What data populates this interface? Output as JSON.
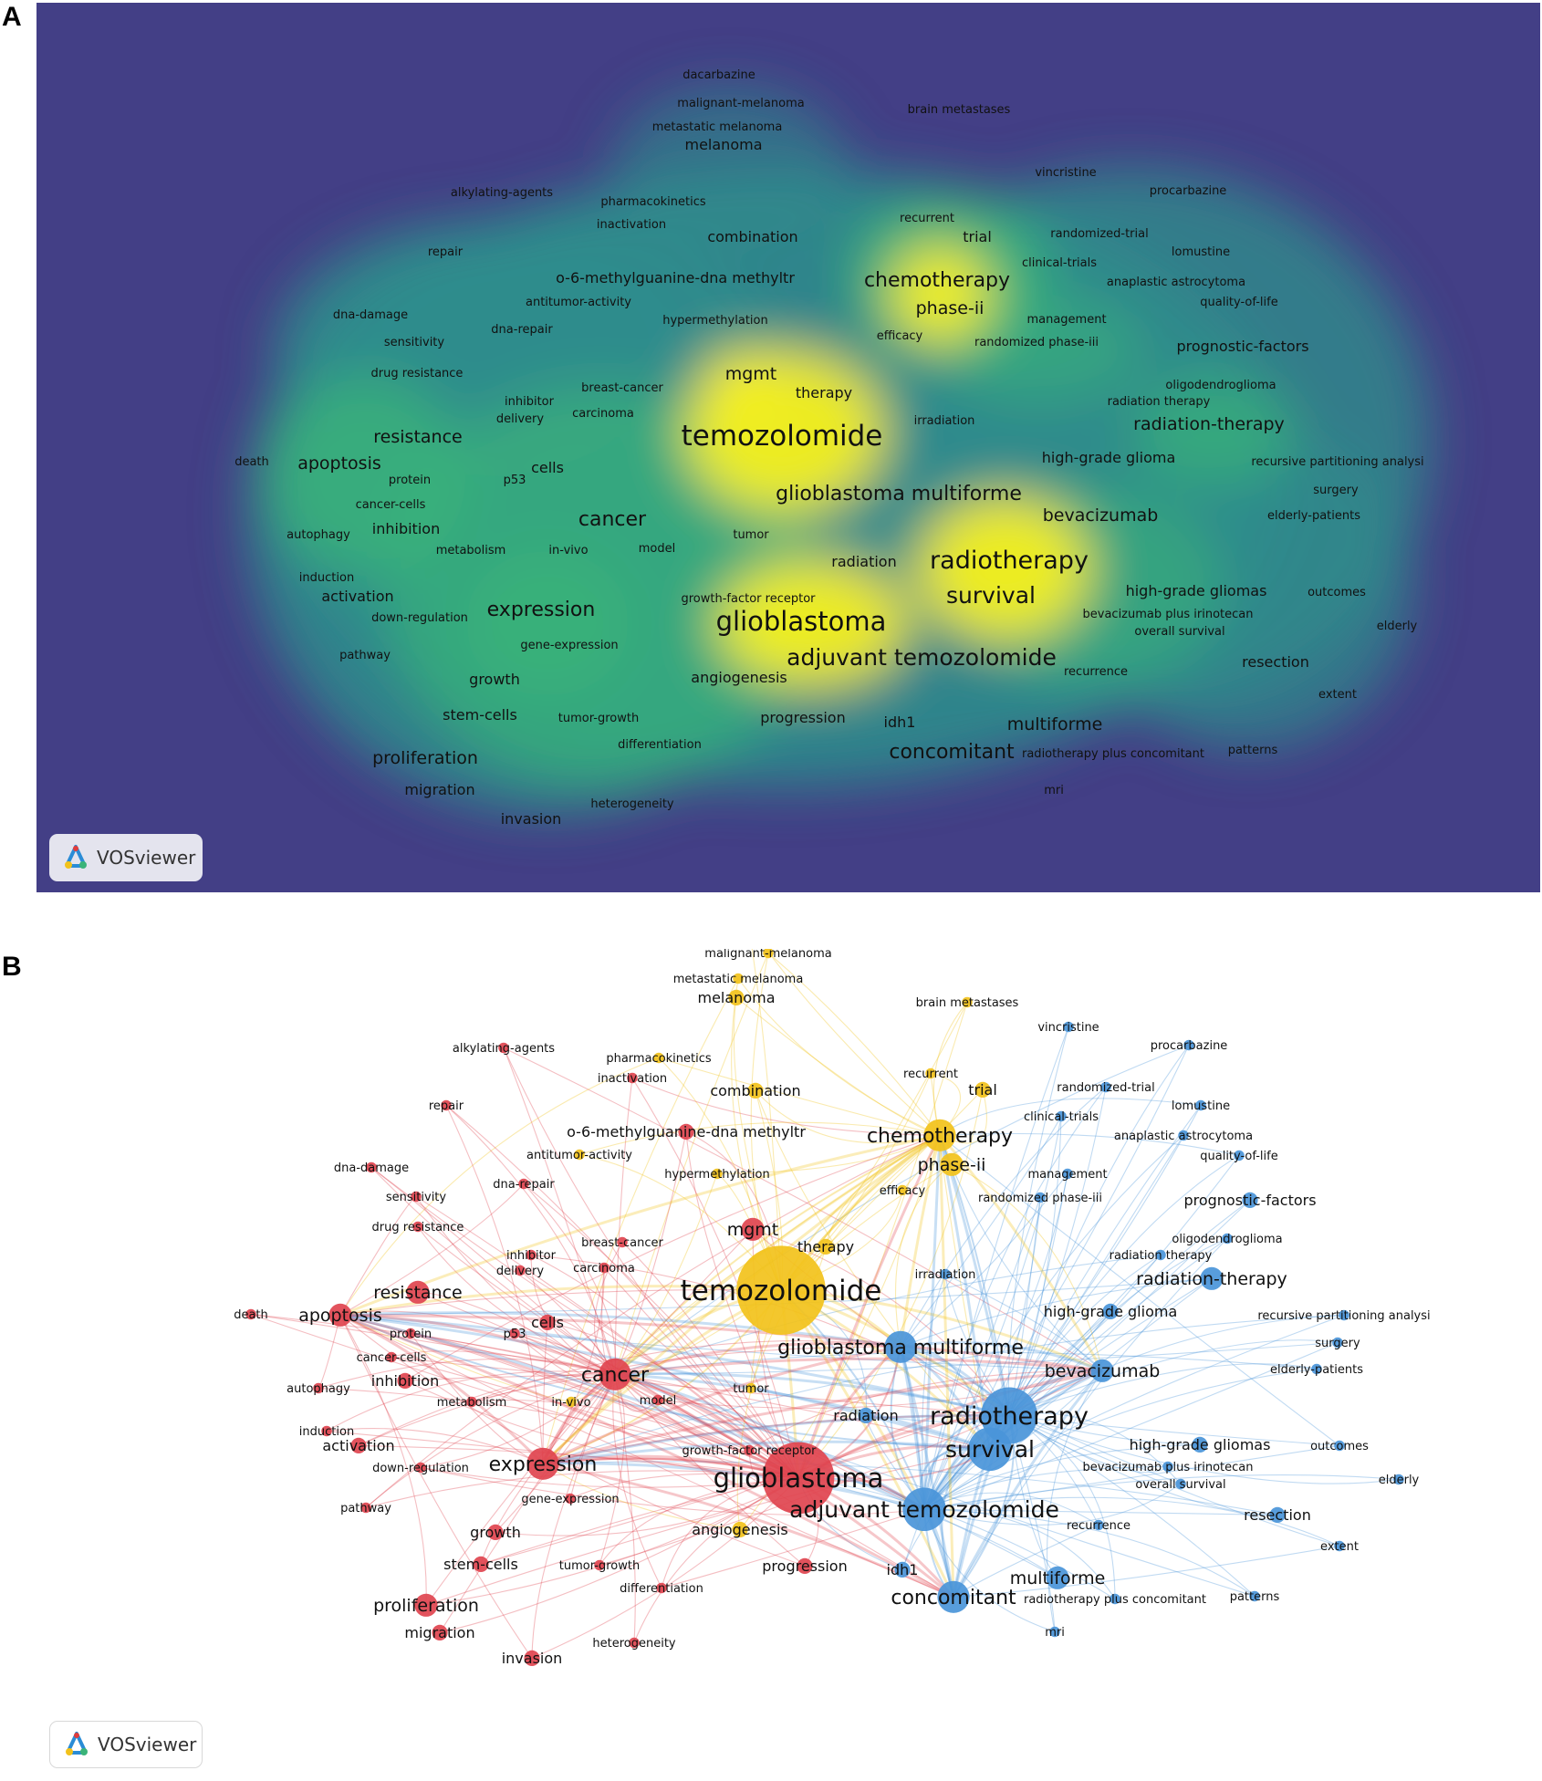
{
  "panels": {
    "a": "A",
    "b": "B"
  },
  "brand": {
    "label": "VOSviewer",
    "logo_icon": "vosviewer-logo-icon"
  },
  "cluster_colors": {
    "red": "#e0444f",
    "yellow": "#f2c21b",
    "blue": "#4a95d9"
  },
  "density_colors": {
    "background": "#433f86",
    "low": "#2f8c8c",
    "mid": "#3bb479",
    "high": "#f7f01c"
  },
  "keywords": [
    {
      "label": "dacarbazine",
      "c": "yellow",
      "w": 1
    },
    {
      "label": "malignant-melanoma",
      "c": "yellow",
      "w": 1
    },
    {
      "label": "metastatic melanoma",
      "c": "yellow",
      "w": 1
    },
    {
      "label": "melanoma",
      "c": "yellow",
      "w": 2
    },
    {
      "label": "brain metastases",
      "c": "yellow",
      "w": 1
    },
    {
      "label": "vincristine",
      "c": "blue",
      "w": 1
    },
    {
      "label": "procarbazine",
      "c": "blue",
      "w": 1
    },
    {
      "label": "alkylating-agents",
      "c": "red",
      "w": 1
    },
    {
      "label": "pharmacokinetics",
      "c": "yellow",
      "w": 1
    },
    {
      "label": "recurrent",
      "c": "yellow",
      "w": 1
    },
    {
      "label": "inactivation",
      "c": "red",
      "w": 1
    },
    {
      "label": "trial",
      "c": "yellow",
      "w": 2
    },
    {
      "label": "randomized-trial",
      "c": "blue",
      "w": 1
    },
    {
      "label": "combination",
      "c": "yellow",
      "w": 2
    },
    {
      "label": "repair",
      "c": "red",
      "w": 1
    },
    {
      "label": "lomustine",
      "c": "blue",
      "w": 1
    },
    {
      "label": "clinical-trials",
      "c": "blue",
      "w": 1
    },
    {
      "label": "o-6-methylguanine-dna methyltr",
      "c": "red",
      "w": 2
    },
    {
      "label": "chemotherapy",
      "c": "yellow",
      "w": 4
    },
    {
      "label": "anaplastic astrocytoma",
      "c": "blue",
      "w": 1
    },
    {
      "label": "antitumor-activity",
      "c": "yellow",
      "w": 1
    },
    {
      "label": "quality-of-life",
      "c": "blue",
      "w": 1
    },
    {
      "label": "phase-ii",
      "c": "yellow",
      "w": 3
    },
    {
      "label": "dna-damage",
      "c": "red",
      "w": 1
    },
    {
      "label": "hypermethylation",
      "c": "yellow",
      "w": 1
    },
    {
      "label": "management",
      "c": "blue",
      "w": 1
    },
    {
      "label": "dna-repair",
      "c": "red",
      "w": 1
    },
    {
      "label": "efficacy",
      "c": "yellow",
      "w": 1
    },
    {
      "label": "sensitivity",
      "c": "red",
      "w": 1
    },
    {
      "label": "randomized phase-iii",
      "c": "blue",
      "w": 1
    },
    {
      "label": "prognostic-factors",
      "c": "blue",
      "w": 2
    },
    {
      "label": "drug resistance",
      "c": "red",
      "w": 1
    },
    {
      "label": "mgmt",
      "c": "red",
      "w": 3
    },
    {
      "label": "oligodendroglioma",
      "c": "blue",
      "w": 1
    },
    {
      "label": "breast-cancer",
      "c": "red",
      "w": 1
    },
    {
      "label": "therapy",
      "c": "yellow",
      "w": 2
    },
    {
      "label": "inhibitor",
      "c": "red",
      "w": 1
    },
    {
      "label": "radiation therapy",
      "c": "blue",
      "w": 1
    },
    {
      "label": "carcinoma",
      "c": "red",
      "w": 1
    },
    {
      "label": "delivery",
      "c": "red",
      "w": 1
    },
    {
      "label": "irradiation",
      "c": "blue",
      "w": 1
    },
    {
      "label": "radiation-therapy",
      "c": "blue",
      "w": 3
    },
    {
      "label": "temozolomide",
      "c": "yellow",
      "w": 8
    },
    {
      "label": "resistance",
      "c": "red",
      "w": 3
    },
    {
      "label": "death",
      "c": "red",
      "w": 1
    },
    {
      "label": "apoptosis",
      "c": "red",
      "w": 3
    },
    {
      "label": "cells",
      "c": "red",
      "w": 2
    },
    {
      "label": "high-grade glioma",
      "c": "blue",
      "w": 2
    },
    {
      "label": "recursive partitioning analysi",
      "c": "blue",
      "w": 1
    },
    {
      "label": "protein",
      "c": "red",
      "w": 1
    },
    {
      "label": "p53",
      "c": "red",
      "w": 1
    },
    {
      "label": "surgery",
      "c": "blue",
      "w": 1
    },
    {
      "label": "glioblastoma multiforme",
      "c": "blue",
      "w": 4
    },
    {
      "label": "cancer-cells",
      "c": "red",
      "w": 1
    },
    {
      "label": "elderly-patients",
      "c": "blue",
      "w": 1
    },
    {
      "label": "cancer",
      "c": "red",
      "w": 4
    },
    {
      "label": "bevacizumab",
      "c": "blue",
      "w": 3
    },
    {
      "label": "inhibition",
      "c": "red",
      "w": 2
    },
    {
      "label": "autophagy",
      "c": "red",
      "w": 1
    },
    {
      "label": "tumor",
      "c": "yellow",
      "w": 1
    },
    {
      "label": "metabolism",
      "c": "red",
      "w": 1
    },
    {
      "label": "in-vivo",
      "c": "yellow",
      "w": 1
    },
    {
      "label": "model",
      "c": "red",
      "w": 1
    },
    {
      "label": "radiotherapy",
      "c": "blue",
      "w": 6
    },
    {
      "label": "induction",
      "c": "red",
      "w": 1
    },
    {
      "label": "radiation",
      "c": "blue",
      "w": 2
    },
    {
      "label": "activation",
      "c": "red",
      "w": 2
    },
    {
      "label": "survival",
      "c": "blue",
      "w": 5
    },
    {
      "label": "high-grade gliomas",
      "c": "blue",
      "w": 2
    },
    {
      "label": "outcomes",
      "c": "blue",
      "w": 1
    },
    {
      "label": "growth-factor receptor",
      "c": "red",
      "w": 1
    },
    {
      "label": "down-regulation",
      "c": "red",
      "w": 1
    },
    {
      "label": "expression",
      "c": "red",
      "w": 4
    },
    {
      "label": "bevacizumab plus irinotecan",
      "c": "blue",
      "w": 1
    },
    {
      "label": "elderly",
      "c": "blue",
      "w": 1
    },
    {
      "label": "glioblastoma",
      "c": "red",
      "w": 7
    },
    {
      "label": "overall survival",
      "c": "blue",
      "w": 1
    },
    {
      "label": "pathway",
      "c": "red",
      "w": 1
    },
    {
      "label": "gene-expression",
      "c": "red",
      "w": 1
    },
    {
      "label": "adjuvant temozolomide",
      "c": "blue",
      "w": 5
    },
    {
      "label": "resection",
      "c": "blue",
      "w": 2
    },
    {
      "label": "recurrence",
      "c": "blue",
      "w": 1
    },
    {
      "label": "angiogenesis",
      "c": "yellow",
      "w": 2
    },
    {
      "label": "growth",
      "c": "red",
      "w": 2
    },
    {
      "label": "extent",
      "c": "blue",
      "w": 1
    },
    {
      "label": "stem-cells",
      "c": "red",
      "w": 2
    },
    {
      "label": "tumor-growth",
      "c": "red",
      "w": 1
    },
    {
      "label": "progression",
      "c": "red",
      "w": 2
    },
    {
      "label": "idh1",
      "c": "blue",
      "w": 2
    },
    {
      "label": "multiforme",
      "c": "blue",
      "w": 3
    },
    {
      "label": "differentiation",
      "c": "red",
      "w": 1
    },
    {
      "label": "concomitant",
      "c": "blue",
      "w": 4
    },
    {
      "label": "radiotherapy plus concomitant",
      "c": "blue",
      "w": 1
    },
    {
      "label": "patterns",
      "c": "blue",
      "w": 1
    },
    {
      "label": "proliferation",
      "c": "red",
      "w": 3
    },
    {
      "label": "mri",
      "c": "blue",
      "w": 1
    },
    {
      "label": "migration",
      "c": "red",
      "w": 2
    },
    {
      "label": "heterogeneity",
      "c": "red",
      "w": 1
    },
    {
      "label": "invasion",
      "c": "red",
      "w": 2
    }
  ]
}
